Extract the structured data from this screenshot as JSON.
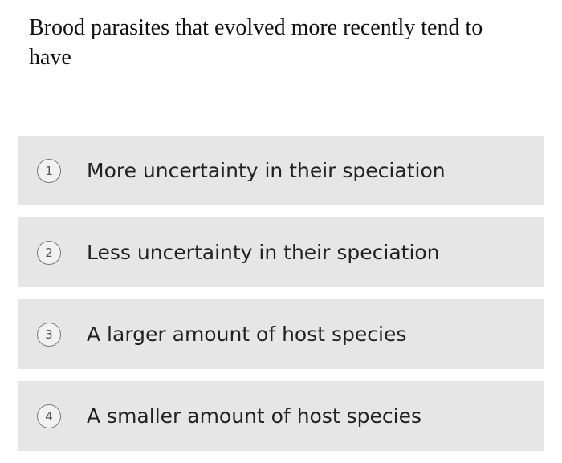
{
  "question": {
    "text": "Brood parasites that evolved more recently tend to have"
  },
  "options": [
    {
      "number": "1",
      "label": "More uncertainty in their speciation"
    },
    {
      "number": "2",
      "label": "Less uncertainty in their speciation"
    },
    {
      "number": "3",
      "label": "A larger amount of host species"
    },
    {
      "number": "4",
      "label": "A smaller amount of host species"
    }
  ],
  "colors": {
    "option_background": "#e6e6e6",
    "badge_border": "#7a7a7a",
    "text": "#222222"
  }
}
